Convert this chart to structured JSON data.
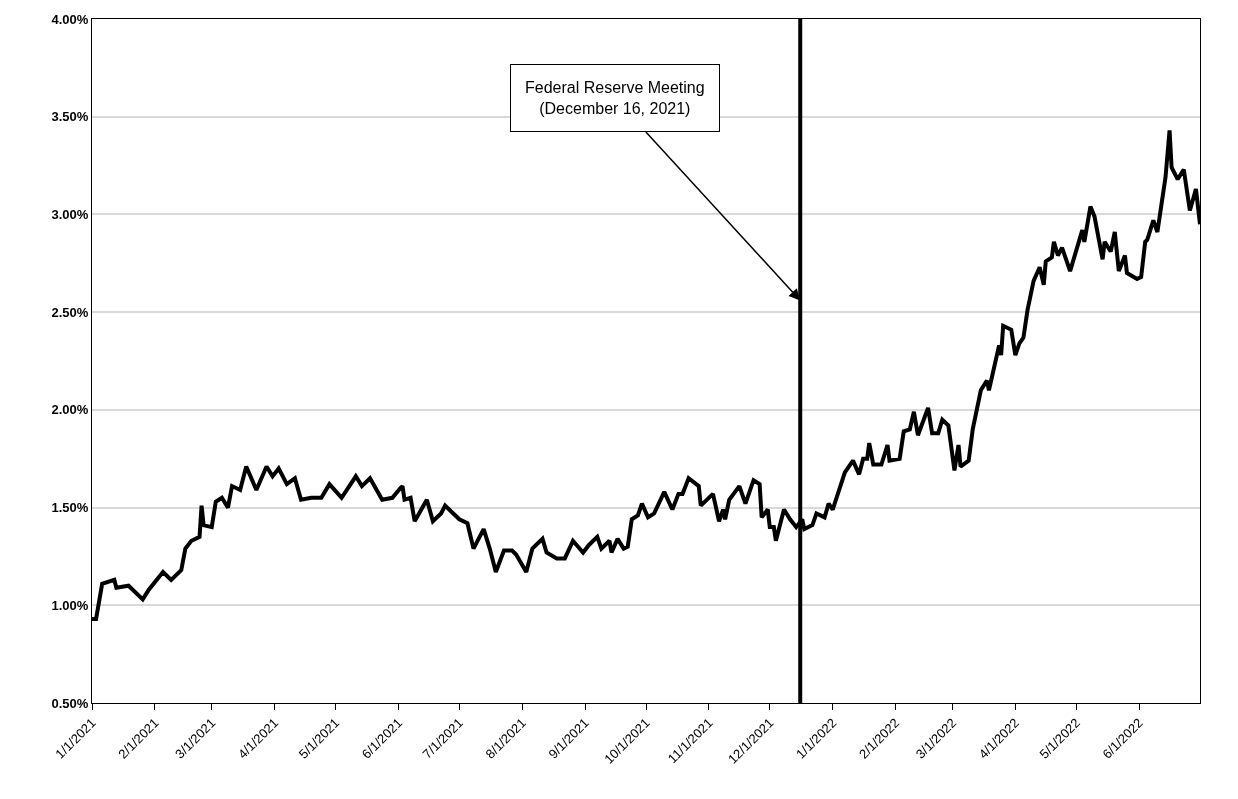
{
  "chart_data": {
    "type": "line",
    "x": [
      "2021-01-01",
      "2021-01-03",
      "2021-01-06",
      "2021-01-12",
      "2021-01-13",
      "2021-01-19",
      "2021-01-26",
      "2021-01-29",
      "2021-02-05",
      "2021-02-09",
      "2021-02-14",
      "2021-02-16",
      "2021-02-19",
      "2021-02-23",
      "2021-02-24",
      "2021-02-25",
      "2021-03-01",
      "2021-03-03",
      "2021-03-06",
      "2021-03-09",
      "2021-03-11",
      "2021-03-15",
      "2021-03-18",
      "2021-03-23",
      "2021-03-28",
      "2021-03-31",
      "2021-04-03",
      "2021-04-07",
      "2021-04-11",
      "2021-04-14",
      "2021-04-19",
      "2021-04-24",
      "2021-04-28",
      "2021-05-04",
      "2021-05-11",
      "2021-05-14",
      "2021-05-18",
      "2021-05-24",
      "2021-05-29",
      "2021-06-02",
      "2021-06-03",
      "2021-06-04",
      "2021-06-07",
      "2021-06-09",
      "2021-06-15",
      "2021-06-18",
      "2021-06-22",
      "2021-06-24",
      "2021-07-01",
      "2021-07-05",
      "2021-07-08",
      "2021-07-11",
      "2021-07-13",
      "2021-07-16",
      "2021-07-19",
      "2021-07-23",
      "2021-07-27",
      "2021-07-29",
      "2021-08-03",
      "2021-08-06",
      "2021-08-11",
      "2021-08-13",
      "2021-08-18",
      "2021-08-22",
      "2021-08-26",
      "2021-08-31",
      "2021-09-03",
      "2021-09-07",
      "2021-09-09",
      "2021-09-13",
      "2021-09-14",
      "2021-09-17",
      "2021-09-20",
      "2021-09-22",
      "2021-09-24",
      "2021-09-27",
      "2021-09-29",
      "2021-10-02",
      "2021-10-05",
      "2021-10-10",
      "2021-10-14",
      "2021-10-17",
      "2021-10-19",
      "2021-10-22",
      "2021-10-27",
      "2021-10-28",
      "2021-11-03",
      "2021-11-06",
      "2021-11-08",
      "2021-11-09",
      "2021-11-11",
      "2021-11-16",
      "2021-11-19",
      "2021-11-23",
      "2021-11-26",
      "2021-11-27",
      "2021-11-30",
      "2021-12-01",
      "2021-12-03",
      "2021-12-04",
      "2021-12-08",
      "2021-12-11",
      "2021-12-14",
      "2021-12-17",
      "2021-12-18",
      "2021-12-22",
      "2021-12-24",
      "2021-12-28",
      "2021-12-30",
      "2022-01-01",
      "2022-01-07",
      "2022-01-11",
      "2022-01-14",
      "2022-01-16",
      "2022-01-18",
      "2022-01-19",
      "2022-01-21",
      "2022-01-25",
      "2022-01-28",
      "2022-01-29",
      "2022-02-03",
      "2022-02-05",
      "2022-02-08",
      "2022-02-10",
      "2022-02-12",
      "2022-02-17",
      "2022-02-19",
      "2022-02-22",
      "2022-02-24",
      "2022-02-27",
      "2022-03-02",
      "2022-03-04",
      "2022-03-05",
      "2022-03-09",
      "2022-03-11",
      "2022-03-15",
      "2022-03-18",
      "2022-03-19",
      "2022-03-24",
      "2022-03-25",
      "2022-03-26",
      "2022-03-30",
      "2022-04-01",
      "2022-04-03",
      "2022-04-05",
      "2022-04-07",
      "2022-04-10",
      "2022-04-13",
      "2022-04-15",
      "2022-04-16",
      "2022-04-19",
      "2022-04-20",
      "2022-04-22",
      "2022-04-24",
      "2022-04-28",
      "2022-05-04",
      "2022-05-05",
      "2022-05-08",
      "2022-05-10",
      "2022-05-14",
      "2022-05-15",
      "2022-05-18",
      "2022-05-20",
      "2022-05-22",
      "2022-05-25",
      "2022-05-26",
      "2022-05-31",
      "2022-06-02",
      "2022-06-04",
      "2022-06-05",
      "2022-06-08",
      "2022-06-10",
      "2022-06-11",
      "2022-06-14",
      "2022-06-16",
      "2022-06-17",
      "2022-06-20",
      "2022-06-23",
      "2022-06-26",
      "2022-06-29",
      "2022-07-01"
    ],
    "series": [
      {
        "color": "#000000",
        "values": [
          0.93,
          0.93,
          1.11,
          1.13,
          1.09,
          1.1,
          1.03,
          1.08,
          1.17,
          1.13,
          1.18,
          1.29,
          1.33,
          1.35,
          1.51,
          1.41,
          1.4,
          1.53,
          1.55,
          1.5,
          1.61,
          1.59,
          1.71,
          1.59,
          1.71,
          1.66,
          1.7,
          1.62,
          1.65,
          1.54,
          1.55,
          1.55,
          1.62,
          1.55,
          1.66,
          1.61,
          1.65,
          1.54,
          1.55,
          1.6,
          1.61,
          1.54,
          1.55,
          1.43,
          1.54,
          1.43,
          1.47,
          1.51,
          1.44,
          1.42,
          1.29,
          1.35,
          1.39,
          1.29,
          1.17,
          1.28,
          1.28,
          1.26,
          1.17,
          1.29,
          1.34,
          1.27,
          1.24,
          1.24,
          1.33,
          1.27,
          1.31,
          1.35,
          1.29,
          1.33,
          1.27,
          1.34,
          1.29,
          1.3,
          1.44,
          1.46,
          1.52,
          1.45,
          1.47,
          1.58,
          1.49,
          1.57,
          1.57,
          1.65,
          1.61,
          1.51,
          1.57,
          1.43,
          1.49,
          1.44,
          1.54,
          1.61,
          1.52,
          1.64,
          1.62,
          1.45,
          1.49,
          1.4,
          1.4,
          1.33,
          1.49,
          1.44,
          1.4,
          1.44,
          1.39,
          1.41,
          1.47,
          1.45,
          1.52,
          1.49,
          1.68,
          1.74,
          1.67,
          1.75,
          1.75,
          1.83,
          1.72,
          1.72,
          1.82,
          1.74,
          1.75,
          1.89,
          1.9,
          1.99,
          1.87,
          2.01,
          1.88,
          1.88,
          1.95,
          1.92,
          1.69,
          1.82,
          1.71,
          1.74,
          1.9,
          2.1,
          2.15,
          2.1,
          2.33,
          2.28,
          2.43,
          2.41,
          2.28,
          2.34,
          2.37,
          2.51,
          2.66,
          2.73,
          2.64,
          2.76,
          2.78,
          2.86,
          2.79,
          2.83,
          2.71,
          2.92,
          2.86,
          3.04,
          2.99,
          2.77,
          2.86,
          2.81,
          2.91,
          2.71,
          2.79,
          2.7,
          2.67,
          2.68,
          2.86,
          2.87,
          2.97,
          2.91,
          2.98,
          3.19,
          3.43,
          3.24,
          3.18,
          3.23,
          3.02,
          3.13,
          2.95
        ]
      }
    ],
    "xlim": [
      "2021-01-01",
      "2022-07-01"
    ],
    "xticks": [
      {
        "value": "2021-01-01",
        "label": "1/1/2021"
      },
      {
        "value": "2021-02-01",
        "label": "2/1/2021"
      },
      {
        "value": "2021-03-01",
        "label": "3/1/2021"
      },
      {
        "value": "2021-04-01",
        "label": "4/1/2021"
      },
      {
        "value": "2021-05-01",
        "label": "5/1/2021"
      },
      {
        "value": "2021-06-01",
        "label": "6/1/2021"
      },
      {
        "value": "2021-07-01",
        "label": "7/1/2021"
      },
      {
        "value": "2021-08-01",
        "label": "8/1/2021"
      },
      {
        "value": "2021-09-01",
        "label": "9/1/2021"
      },
      {
        "value": "2021-10-01",
        "label": "10/1/2021"
      },
      {
        "value": "2021-11-01",
        "label": "11/1/2021"
      },
      {
        "value": "2021-12-01",
        "label": "12/1/2021"
      },
      {
        "value": "2022-01-01",
        "label": "1/1/2022"
      },
      {
        "value": "2022-02-01",
        "label": "2/1/2022"
      },
      {
        "value": "2022-03-01",
        "label": "3/1/2022"
      },
      {
        "value": "2022-04-01",
        "label": "4/1/2022"
      },
      {
        "value": "2022-05-01",
        "label": "5/1/2022"
      },
      {
        "value": "2022-06-01",
        "label": "6/1/2022"
      }
    ],
    "ylim": [
      0.5,
      4.0
    ],
    "yticks": [
      {
        "value": 0.5,
        "label": "0.50%"
      },
      {
        "value": 1.0,
        "label": "1.00%"
      },
      {
        "value": 1.5,
        "label": "1.50%"
      },
      {
        "value": 2.0,
        "label": "2.00%"
      },
      {
        "value": 2.5,
        "label": "2.50%"
      },
      {
        "value": 3.0,
        "label": "3.00%"
      },
      {
        "value": 3.5,
        "label": "3.50%"
      },
      {
        "value": 4.0,
        "label": "4.00%"
      }
    ],
    "grid": "y",
    "ref_lines": [
      {
        "axis": "x",
        "value": "2021-12-16",
        "color": "#000000",
        "line_style": "solid"
      }
    ],
    "annotations": [
      {
        "text": "Federal Reserve Meeting\n(December 16, 2021)",
        "x": "2021-12-16",
        "y": 2.56
      }
    ],
    "line_style": "solid",
    "marker": "none",
    "legend": false
  }
}
